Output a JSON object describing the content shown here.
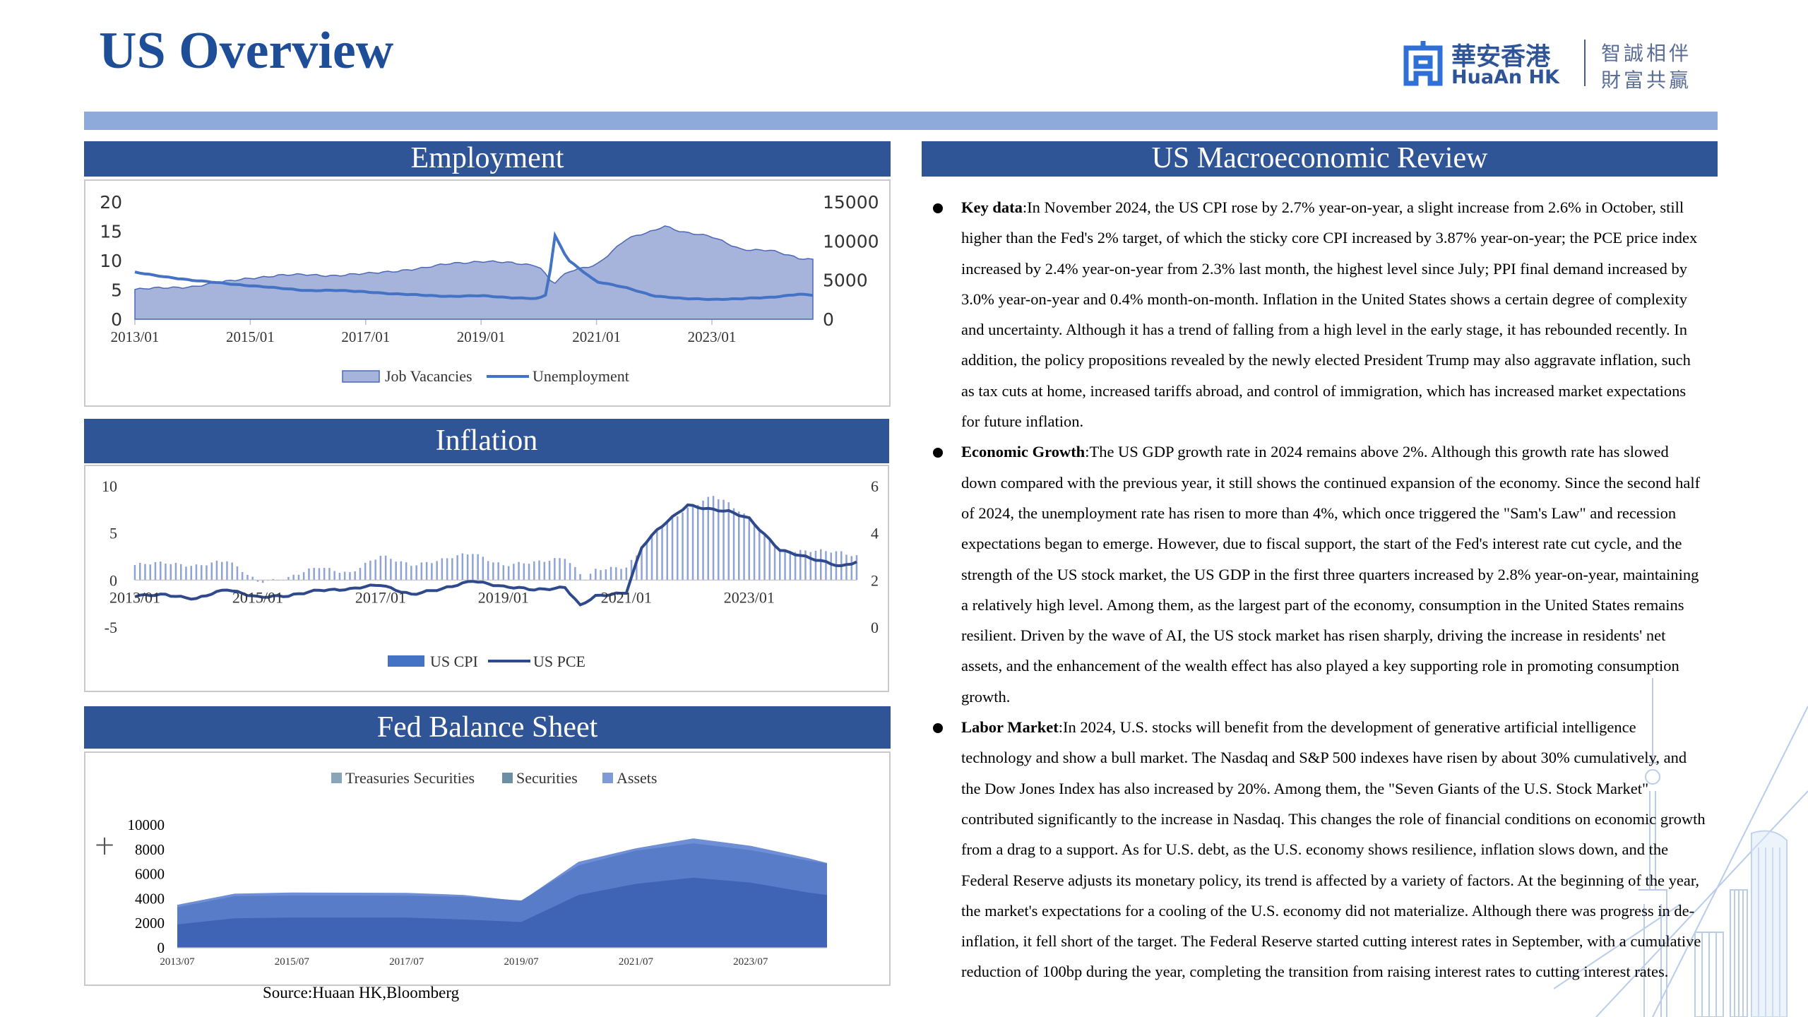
{
  "page": {
    "title": "US Overview",
    "source": "Source:Huaan HK,Bloomberg"
  },
  "logo": {
    "name_cn": "華安香港",
    "name_en": "HuaAn HK",
    "slogan_line1": "智誠相伴",
    "slogan_line2": "財富共贏"
  },
  "colors": {
    "header_bg": "#2f5597",
    "top_bar": "#8eaadb",
    "area_fill": "#a6b4dc",
    "line_blue": "#4472c4",
    "line_dark": "#2f4a8c"
  },
  "panels": {
    "employment": "Employment",
    "inflation": "Inflation",
    "fed": "Fed Balance Sheet",
    "review": "US Macroeconomic Review"
  },
  "chart_data": [
    {
      "type": "area",
      "panel": "Employment",
      "x_ticks": [
        "2013/01",
        "2015/01",
        "2017/01",
        "2019/01",
        "2021/01",
        "2023/01"
      ],
      "y_left_ticks": [
        "0",
        "5",
        "10",
        "15",
        "20"
      ],
      "y_right_ticks": [
        "0",
        "5000",
        "10000",
        "15000"
      ],
      "ylim_left": [
        0,
        20
      ],
      "ylim_right": [
        0,
        15000
      ],
      "legend": [
        "Job Vacancies",
        "Unemployment"
      ],
      "x_range": [
        "2013/01",
        "2024/10"
      ],
      "series": [
        {
          "name": "Job Vacancies",
          "axis": "right",
          "style": "area",
          "x": [
            "2013/01",
            "2013/07",
            "2014/01",
            "2014/07",
            "2015/01",
            "2015/07",
            "2016/01",
            "2016/07",
            "2017/01",
            "2017/07",
            "2018/01",
            "2018/07",
            "2019/01",
            "2019/07",
            "2020/01",
            "2020/04",
            "2020/07",
            "2021/01",
            "2021/07",
            "2022/01",
            "2022/03",
            "2022/07",
            "2023/01",
            "2023/07",
            "2024/01",
            "2024/07",
            "2024/10"
          ],
          "values": [
            3800,
            4000,
            4200,
            4700,
            5300,
            5600,
            5700,
            5600,
            5800,
            6200,
            6500,
            7200,
            7400,
            7200,
            6900,
            4500,
            6000,
            7000,
            10200,
            11300,
            12000,
            11200,
            10500,
            9000,
            8800,
            7800,
            7700
          ]
        },
        {
          "name": "Unemployment",
          "axis": "left",
          "style": "line",
          "x": [
            "2013/01",
            "2013/07",
            "2014/01",
            "2014/07",
            "2015/01",
            "2015/07",
            "2016/01",
            "2016/07",
            "2017/01",
            "2017/07",
            "2018/01",
            "2018/07",
            "2019/01",
            "2019/07",
            "2020/01",
            "2020/03",
            "2020/04",
            "2020/07",
            "2021/01",
            "2021/07",
            "2022/01",
            "2022/07",
            "2023/01",
            "2023/07",
            "2024/01",
            "2024/07",
            "2024/10"
          ],
          "values": [
            8.0,
            7.3,
            6.6,
            6.2,
            5.7,
            5.3,
            4.9,
            4.9,
            4.7,
            4.3,
            4.1,
            3.9,
            4.0,
            3.7,
            3.5,
            4.4,
            14.8,
            10.2,
            6.4,
            5.4,
            4.0,
            3.5,
            3.4,
            3.5,
            3.7,
            4.3,
            4.1
          ]
        }
      ]
    },
    {
      "type": "bar",
      "panel": "Inflation",
      "x_ticks": [
        "2013/01",
        "2015/01",
        "2017/01",
        "2019/01",
        "2021/01",
        "2023/01"
      ],
      "y_left_ticks": [
        "-5",
        "0",
        "5",
        "10"
      ],
      "y_right_ticks": [
        "0",
        "2",
        "4",
        "6"
      ],
      "ylim_left": [
        -5,
        10
      ],
      "ylim_right": [
        0,
        6
      ],
      "legend": [
        "US CPI",
        "US PCE"
      ],
      "x_range": [
        "2013/01",
        "2024/10"
      ],
      "series": [
        {
          "name": "US CPI",
          "axis": "left",
          "style": "bar",
          "x": [
            "2013/01",
            "2013/07",
            "2014/01",
            "2014/07",
            "2015/01",
            "2015/07",
            "2016/01",
            "2016/07",
            "2017/01",
            "2017/07",
            "2018/01",
            "2018/07",
            "2019/01",
            "2019/07",
            "2020/01",
            "2020/05",
            "2020/07",
            "2021/01",
            "2021/07",
            "2022/01",
            "2022/06",
            "2022/09",
            "2023/01",
            "2023/07",
            "2024/01",
            "2024/07",
            "2024/10"
          ],
          "values": [
            1.6,
            1.8,
            1.6,
            2.0,
            -0.1,
            0.2,
            1.4,
            0.8,
            2.5,
            1.7,
            2.1,
            2.9,
            1.6,
            1.8,
            2.5,
            0.1,
            1.0,
            1.4,
            5.4,
            7.5,
            9.1,
            8.2,
            6.4,
            3.2,
            3.1,
            2.9,
            2.6
          ]
        },
        {
          "name": "US PCE",
          "axis": "right",
          "style": "line",
          "x": [
            "2013/01",
            "2013/07",
            "2014/01",
            "2014/07",
            "2015/01",
            "2015/07",
            "2016/01",
            "2016/07",
            "2017/01",
            "2017/07",
            "2018/01",
            "2018/07",
            "2019/01",
            "2019/07",
            "2020/01",
            "2020/04",
            "2020/07",
            "2021/01",
            "2021/04",
            "2021/07",
            "2022/01",
            "2022/06",
            "2022/09",
            "2023/01",
            "2023/07",
            "2024/01",
            "2024/07",
            "2024/10"
          ],
          "values": [
            1.3,
            1.4,
            1.2,
            1.6,
            1.3,
            1.3,
            1.6,
            1.6,
            1.8,
            1.4,
            1.6,
            2.0,
            1.7,
            1.6,
            1.7,
            0.9,
            1.3,
            1.5,
            3.4,
            4.1,
            5.2,
            5.0,
            4.9,
            4.6,
            3.3,
            2.9,
            2.6,
            2.8
          ]
        }
      ]
    },
    {
      "type": "area",
      "panel": "Fed Balance Sheet",
      "x_ticks": [
        "2013/07",
        "2015/07",
        "2017/07",
        "2019/07",
        "2021/07",
        "2023/07"
      ],
      "y_ticks": [
        "0",
        "2000",
        "4000",
        "6000",
        "8000",
        "10000"
      ],
      "ylim": [
        0,
        10000
      ],
      "y_unit": "十",
      "legend": [
        "Treasuries Securities",
        "Securities",
        "Assets"
      ],
      "legend_colors": [
        "#8aa5b8",
        "#6e8fa3",
        "#7f9ad6"
      ],
      "x": [
        "2013/07",
        "2014/07",
        "2015/07",
        "2016/07",
        "2017/07",
        "2018/07",
        "2019/07",
        "2020/07",
        "2021/07",
        "2022/07",
        "2023/07",
        "2024/07",
        "2024/11"
      ],
      "series": [
        {
          "name": "Treasuries Securities",
          "values": [
            1900,
            2400,
            2460,
            2460,
            2460,
            2300,
            2100,
            4300,
            5200,
            5700,
            5300,
            4500,
            4300
          ]
        },
        {
          "name": "Securities",
          "values": [
            3300,
            4200,
            4250,
            4250,
            4250,
            4150,
            3850,
            6700,
            7900,
            8500,
            7950,
            7100,
            6850
          ]
        },
        {
          "name": "Assets",
          "values": [
            3500,
            4400,
            4500,
            4480,
            4470,
            4300,
            3800,
            7000,
            8100,
            8900,
            8300,
            7300,
            6900
          ]
        }
      ]
    }
  ],
  "review": [
    {
      "label": "Key data",
      "text": ":In November 2024, the US CPI rose by 2.7% year-on-year, a slight increase from 2.6% in October, still higher than the Fed's 2% target, of which the sticky core CPI increased by 3.87% year-on-year; the PCE price index increased by 2.4% year-on-year from 2.3% last month, the highest level since July; PPI final demand increased by 3.0% year-on-year and 0.4% month-on-month. Inflation in the United States shows a certain degree of complexity and uncertainty. Although it has a trend of falling from a high level in the early stage, it has rebounded recently. In addition, the policy propositions revealed by the newly elected President Trump may also aggravate inflation, such as tax cuts at home, increased tariffs abroad, and control of immigration, which has increased market expectations for future inflation."
    },
    {
      "label": "Economic Growth",
      "text": ":The US GDP growth rate in 2024 remains above 2%. Although this growth rate has slowed down compared with the previous year, it still shows the continued expansion of the economy. Since the second half of 2024, the unemployment rate has risen to more than 4%, which once triggered the \"Sam's Law\" and recession expectations began to emerge. However, due to fiscal support, the start of the Fed's interest rate cut cycle, and the strength of the US stock market, the US GDP in the first three quarters increased by 2.8% year-on-year, maintaining a relatively high level. Among them, as the largest part of the economy, consumption in the United States remains resilient. Driven by the wave of AI, the US stock market has risen sharply, driving the increase in residents' net assets, and the enhancement of the wealth effect has also played a key supporting role in promoting consumption growth."
    },
    {
      "label": "Labor Market",
      "text": ":In 2024, U.S. stocks will benefit from the development of generative artificial intelligence technology and show a bull market. The Nasdaq and S&P 500 indexes have risen by about 30% cumulatively, and the Dow Jones Index has also increased by 20%. Among them, the \"Seven Giants of the U.S. Stock Market\" contributed significantly to the increase in Nasdaq. This changes the role of financial conditions on economic growth from a drag to a support. As for U.S. debt, as the U.S. economy shows resilience, inflation slows down, and the Federal Reserve adjusts its monetary policy, its trend is affected by a variety of factors. At the beginning of the year, the market's expectations for a cooling of the U.S. economy did not materialize. Although there was progress in de-inflation, it fell short of the target. The Federal Reserve started cutting interest rates in September, with a cumulative reduction of 100bp during the year, completing the transition from raising interest rates to cutting interest rates."
    }
  ]
}
